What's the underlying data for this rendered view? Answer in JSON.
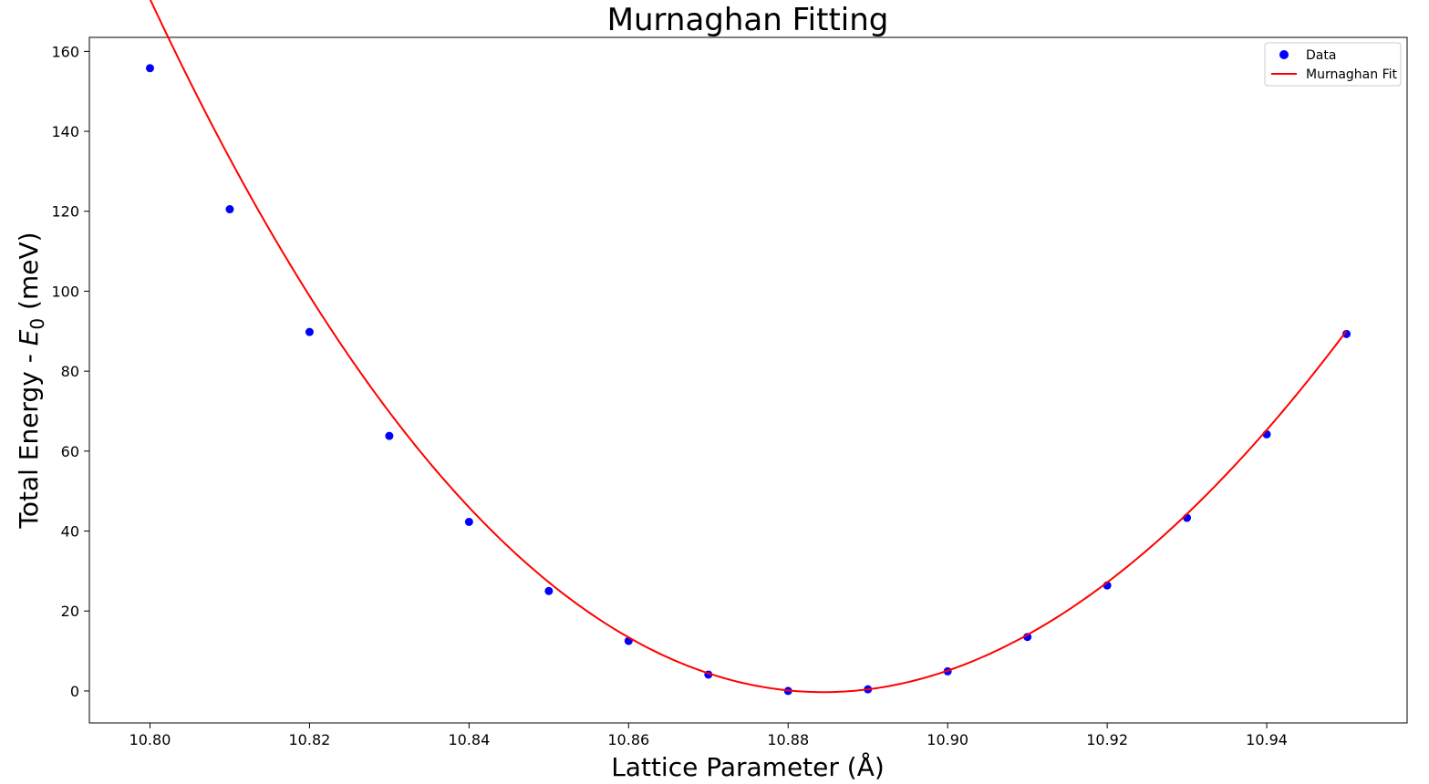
{
  "chart_data": {
    "type": "scatter",
    "title": "Murnaghan Fitting",
    "xlabel": "Lattice Parameter (Å)",
    "ylabel": {
      "prefix": "Total Energy - ",
      "symbol": "E",
      "subscript": "0",
      "suffix": " (meV)"
    },
    "xlim": [
      10.7924,
      10.9576
    ],
    "ylim": [
      -8.0,
      163.5
    ],
    "x_ticks": [
      10.8,
      10.82,
      10.84,
      10.86,
      10.88,
      10.9,
      10.92,
      10.94
    ],
    "x_tick_labels": [
      "10.80",
      "10.82",
      "10.84",
      "10.86",
      "10.88",
      "10.90",
      "10.92",
      "10.94"
    ],
    "y_ticks": [
      0,
      20,
      40,
      60,
      80,
      100,
      120,
      140,
      160
    ],
    "y_tick_labels": [
      "0",
      "20",
      "40",
      "60",
      "80",
      "100",
      "120",
      "140",
      "160"
    ],
    "grid": false,
    "legend_position": "top-right",
    "series": [
      {
        "name": "Data",
        "kind": "scatter",
        "color": "#0000ff",
        "marker": "circle",
        "x": [
          10.8,
          10.81,
          10.82,
          10.83,
          10.84,
          10.85,
          10.86,
          10.87,
          10.88,
          10.89,
          10.9,
          10.91,
          10.92,
          10.93,
          10.94,
          10.95
        ],
        "y": [
          155.8,
          120.5,
          89.8,
          63.8,
          42.3,
          25.0,
          12.5,
          4.1,
          0.0,
          0.4,
          4.9,
          13.5,
          26.4,
          43.3,
          64.2,
          89.3
        ]
      },
      {
        "name": "Murnaghan Fit",
        "kind": "line",
        "color": "#ff0000",
        "fit": {
          "x_min": 10.8,
          "x_max": 10.95,
          "a0": 10.8844,
          "b": 22460,
          "c": -22300,
          "e_offset": -0.3
        }
      }
    ]
  }
}
